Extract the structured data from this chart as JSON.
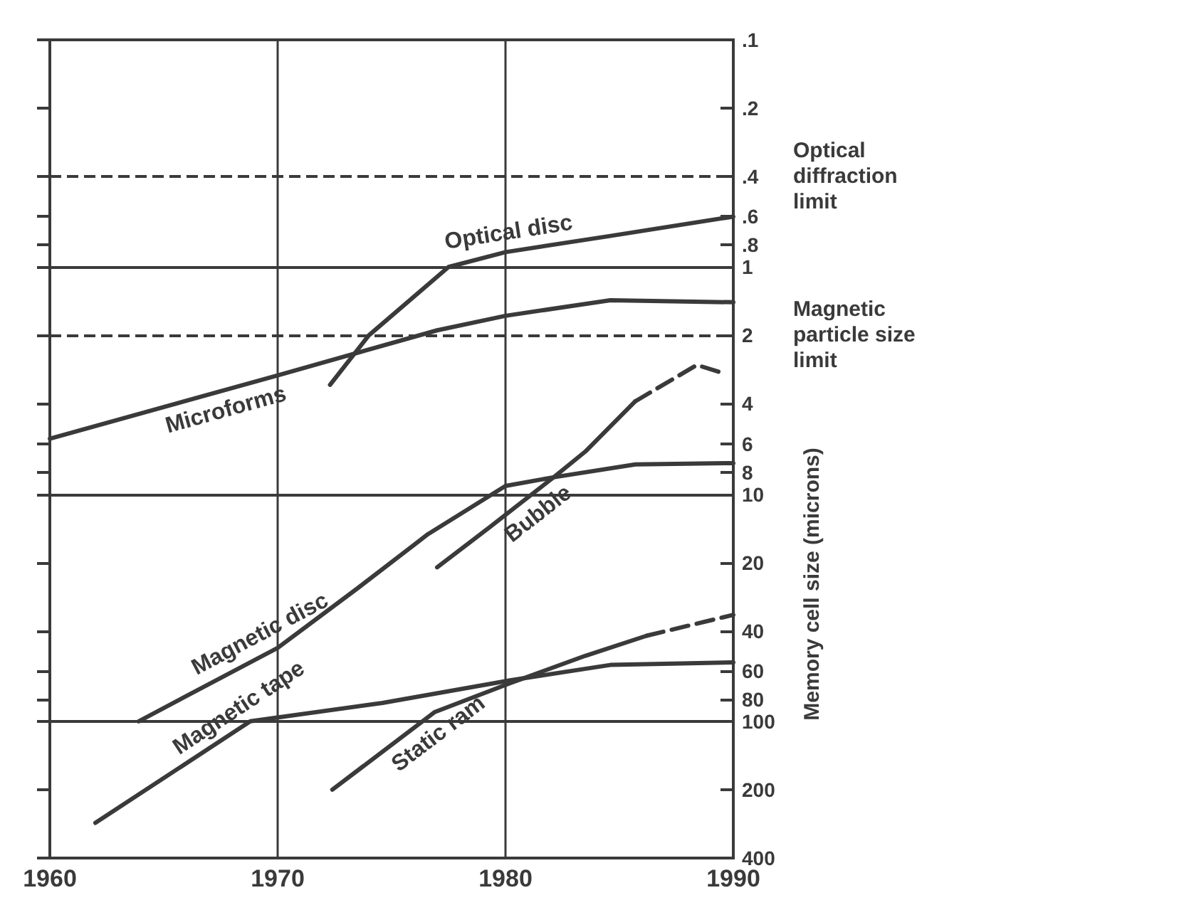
{
  "chart_data": {
    "type": "line",
    "ylabel": "Memory cell size (microns)",
    "xlim": [
      1960,
      1990
    ],
    "xticks": [
      1960,
      1970,
      1980,
      1990
    ],
    "ylim": [
      400,
      0.1
    ],
    "log": "y",
    "yticks": [
      {
        "value": 0.1,
        "label": ".1"
      },
      {
        "value": 0.2,
        "label": ".2"
      },
      {
        "value": 0.4,
        "label": ".4"
      },
      {
        "value": 0.6,
        "label": ".6"
      },
      {
        "value": 0.8,
        "label": ".8"
      },
      1,
      2,
      4,
      6,
      8,
      10,
      20,
      40,
      60,
      80,
      100,
      200,
      400
    ],
    "grid": "x",
    "series": [
      {
        "name": "Optical disc",
        "color": "#3a3a3a",
        "line_style": "solid",
        "x": [
          1972.3,
          1974,
          1977.5,
          1980,
          1984.6,
          1990
        ],
        "values": [
          3.3,
          2.0,
          1.0,
          0.86,
          0.73,
          0.6
        ]
      },
      {
        "name": "Microforms",
        "color": "#3a3a3a",
        "line_style": "solid",
        "x": [
          1960,
          1970,
          1977,
          1980,
          1984.6,
          1990
        ],
        "values": [
          5.7,
          3,
          1.9,
          1.64,
          1.4,
          1.43
        ]
      },
      {
        "name": "Magnetic disc",
        "color": "#3a3a3a",
        "line_style": "solid",
        "x": [
          1963.9,
          1970,
          1973.5,
          1976.6,
          1980,
          1982.2,
          1985.7,
          1990
        ],
        "values": [
          100,
          47.5,
          26,
          15,
          9.2,
          8.4,
          7.4,
          7.3
        ]
      },
      {
        "name": "Bubble",
        "color": "#3a3a3a",
        "line_style": "solid",
        "x": [
          1977,
          1979.3,
          1982.2,
          1983.5,
          1985.7
        ],
        "values": [
          21,
          14,
          8.3,
          6.5,
          3.9
        ]
      },
      {
        "color": "#3a3a3a",
        "line_style": "dashed",
        "x": [
          1985.7,
          1988.4,
          1989.4
        ],
        "values": [
          3.9,
          2.7,
          2.9
        ]
      },
      {
        "name": "Magnetic tape",
        "color": "#3a3a3a",
        "line_style": "solid",
        "x": [
          1962,
          1968.8,
          1974.6,
          1980.2,
          1984.6,
          1990
        ],
        "values": [
          280,
          100,
          83,
          66,
          56.5,
          55
        ]
      },
      {
        "name": "Static ram",
        "color": "#3a3a3a",
        "line_style": "solid",
        "x": [
          1972.4,
          1976.9,
          1980.2,
          1983.5,
          1986.2
        ],
        "values": [
          200,
          91,
          68,
          51.5,
          42
        ]
      },
      {
        "color": "#3a3a3a",
        "line_style": "dashed",
        "x": [
          1986.2,
          1990
        ],
        "values": [
          42,
          34
        ]
      }
    ],
    "ref_lines": [
      {
        "axis": "y",
        "value": 0.4,
        "label": "Optical diffraction limit",
        "color": "#3a3a3a",
        "line_style": "dashed"
      },
      {
        "axis": "y",
        "value": 2,
        "label": "Magnetic particle size limit",
        "color": "#3a3a3a",
        "line_style": "dashed"
      },
      {
        "axis": "y",
        "value": 1,
        "color": "#3a3a3a",
        "line_style": "solid"
      },
      {
        "axis": "y",
        "value": 10,
        "color": "#3a3a3a",
        "line_style": "solid"
      },
      {
        "axis": "y",
        "value": 100,
        "color": "#3a3a3a",
        "line_style": "solid"
      }
    ]
  }
}
